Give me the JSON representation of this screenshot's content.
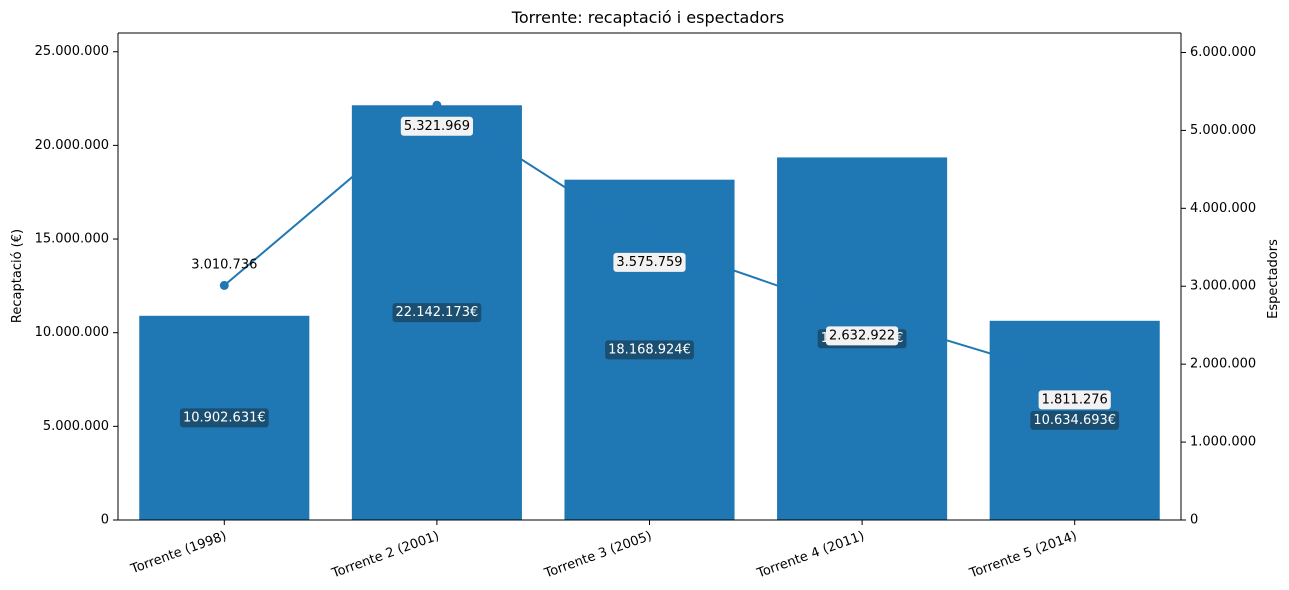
{
  "chart_data": {
    "type": "bar",
    "title": "Torrente: recaptació i espectadors",
    "categories": [
      "Torrente (1998)",
      "Torrente 2 (2001)",
      "Torrente 3 (2005)",
      "Torrente 4 (2011)",
      "Torrente 5 (2014)"
    ],
    "series": [
      {
        "name": "Recaptació (€)",
        "type": "bar",
        "axis": "left",
        "values": [
          10902631,
          22142173,
          18168924,
          19356588,
          10634693
        ],
        "labels": [
          "10.902.631€",
          "22.142.173€",
          "18.168.924€",
          "19.356.588€",
          "10.634.693€"
        ]
      },
      {
        "name": "Espectadors",
        "type": "line",
        "axis": "right",
        "values": [
          3010736,
          5321969,
          3575759,
          2632922,
          1811276
        ],
        "labels": [
          "3.010.736",
          "5.321.969",
          "3.575.759",
          "2.632.922",
          "1.811.276"
        ]
      }
    ],
    "ylabel": "Recaptació (€)",
    "y2label": "Espectadors",
    "ylim": [
      0,
      26000000
    ],
    "y2lim": [
      0,
      6250000
    ],
    "yticks": [
      {
        "value": 0,
        "label": "0"
      },
      {
        "value": 5000000,
        "label": "5.000.000"
      },
      {
        "value": 10000000,
        "label": "10.000.000"
      },
      {
        "value": 15000000,
        "label": "15.000.000"
      },
      {
        "value": 20000000,
        "label": "20.000.000"
      },
      {
        "value": 25000000,
        "label": "25.000.000"
      }
    ],
    "y2ticks": [
      {
        "value": 0,
        "label": "0"
      },
      {
        "value": 1000000,
        "label": "1.000.000"
      },
      {
        "value": 2000000,
        "label": "2.000.000"
      },
      {
        "value": 3000000,
        "label": "3.000.000"
      },
      {
        "value": 4000000,
        "label": "4.000.000"
      },
      {
        "value": 5000000,
        "label": "5.000.000"
      },
      {
        "value": 6000000,
        "label": "6.000.000"
      }
    ],
    "grid": false,
    "colors": {
      "bar": "#1f77b4",
      "line": "#1f77b4",
      "label_box_dark": "#1b4f72",
      "label_box_light": "#f2f2f2"
    }
  }
}
